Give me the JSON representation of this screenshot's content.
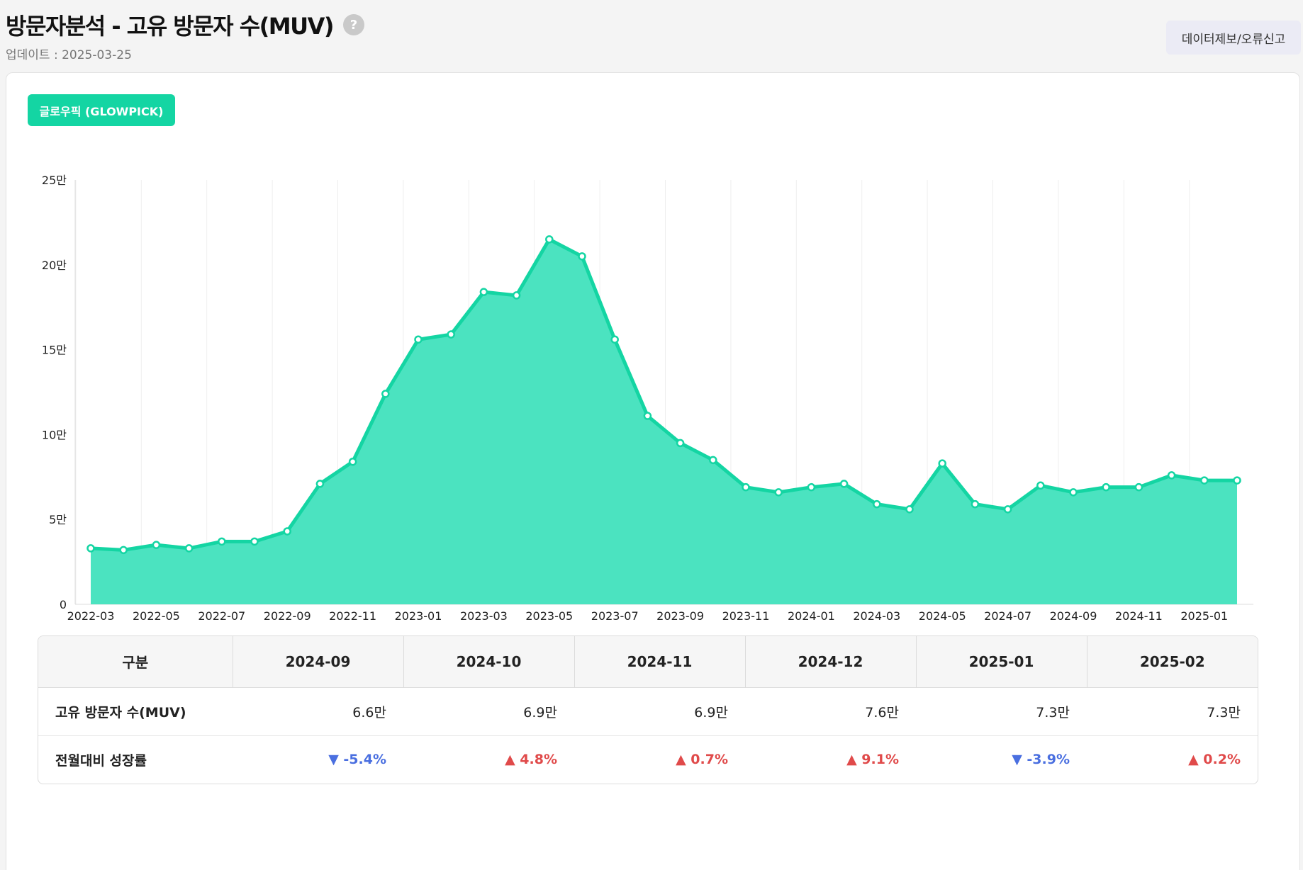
{
  "header": {
    "title": "방문자분석 - 고유 방문자 수(MUV)",
    "help_glyph": "?",
    "update_date": "업데이트 : 2025-03-25",
    "report_button": "데이터제보/오류신고"
  },
  "site_button": "글로우픽 (GLOWPICK)",
  "colors": {
    "accent": "#14d5a3",
    "area_fill": "#4be3c0",
    "up": "#e04a4a",
    "down": "#4a6fe0"
  },
  "chart_data": {
    "type": "area",
    "x": [
      "2022-03",
      "2022-04",
      "2022-05",
      "2022-06",
      "2022-07",
      "2022-08",
      "2022-09",
      "2022-10",
      "2022-11",
      "2022-12",
      "2023-01",
      "2023-02",
      "2023-03",
      "2023-04",
      "2023-05",
      "2023-06",
      "2023-07",
      "2023-08",
      "2023-09",
      "2023-10",
      "2023-11",
      "2023-12",
      "2024-01",
      "2024-02",
      "2024-03",
      "2024-04",
      "2024-05",
      "2024-06",
      "2024-07",
      "2024-08",
      "2024-09",
      "2024-10",
      "2024-11",
      "2024-12",
      "2025-01",
      "2025-02"
    ],
    "x_tick_labels": [
      "2022-03",
      "2022-05",
      "2022-07",
      "2022-09",
      "2022-11",
      "2023-01",
      "2023-03",
      "2023-05",
      "2023-07",
      "2023-09",
      "2023-11",
      "2024-01",
      "2024-03",
      "2024-05",
      "2024-07",
      "2024-09",
      "2024-11",
      "2025-01"
    ],
    "series": [
      {
        "name": "고유 방문자 수(MUV)",
        "values": [
          33000,
          32000,
          35000,
          33000,
          37000,
          37000,
          43000,
          71000,
          84000,
          124000,
          156000,
          159000,
          184000,
          182000,
          215000,
          205000,
          156000,
          111000,
          95000,
          85000,
          69000,
          66000,
          69000,
          71000,
          59000,
          56000,
          83000,
          59000,
          56000,
          70000,
          66000,
          69000,
          69000,
          76000,
          73000,
          73000
        ]
      }
    ],
    "y_ticks": [
      "0",
      "5만",
      "10만",
      "15만",
      "20만",
      "25만"
    ],
    "ylim": [
      0,
      250000
    ],
    "grid": "vertical",
    "legend_position": "bottom-center"
  },
  "table": {
    "headers": [
      "구분",
      "2024-09",
      "2024-10",
      "2024-11",
      "2024-12",
      "2025-01",
      "2025-02"
    ],
    "rows": [
      {
        "label": "고유 방문자 수(MUV)",
        "cells": [
          "6.6만",
          "6.9만",
          "6.9만",
          "7.6만",
          "7.3만",
          "7.3만"
        ]
      },
      {
        "label": "전월대비 성장률",
        "cells": [
          {
            "arrow": "▼",
            "text": "-5.4%",
            "dir": "down"
          },
          {
            "arrow": "▲",
            "text": "4.8%",
            "dir": "up"
          },
          {
            "arrow": "▲",
            "text": "0.7%",
            "dir": "up"
          },
          {
            "arrow": "▲",
            "text": "9.1%",
            "dir": "up"
          },
          {
            "arrow": "▼",
            "text": "-3.9%",
            "dir": "down"
          },
          {
            "arrow": "▲",
            "text": "0.2%",
            "dir": "up"
          }
        ]
      }
    ]
  }
}
